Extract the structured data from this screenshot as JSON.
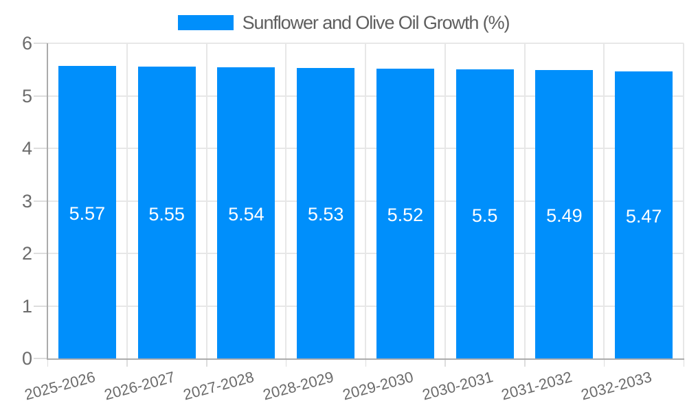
{
  "chart_data": {
    "type": "bar",
    "title": "Sunflower and Olive Oil Growth (%)",
    "legend": {
      "label": "Sunflower and Olive Oil Growth (%)",
      "position": "top-center",
      "swatch_color": "#008ffb"
    },
    "categories": [
      "2025-2026",
      "2026-2027",
      "2027-2028",
      "2028-2029",
      "2029-2030",
      "2030-2031",
      "2031-2032",
      "2032-2033"
    ],
    "values": [
      5.57,
      5.55,
      5.54,
      5.53,
      5.52,
      5.5,
      5.49,
      5.47
    ],
    "data_labels": [
      "5.57",
      "5.55",
      "5.54",
      "5.53",
      "5.52",
      "5.5",
      "5.49",
      "5.47"
    ],
    "xlabel": "",
    "ylabel": "",
    "ylim": [
      0,
      6
    ],
    "yticks": [
      0,
      1,
      2,
      3,
      4,
      5,
      6
    ],
    "grid": true,
    "x_label_rotation_deg": -15,
    "colors": {
      "bar": "#008ffb",
      "data_label": "#ffffff",
      "grid": "#e7e7e7",
      "axis": "#ababab",
      "tick": "#dddddd",
      "axis_label": "#6b6b6b",
      "legend_text": "#5f5f5f"
    }
  }
}
